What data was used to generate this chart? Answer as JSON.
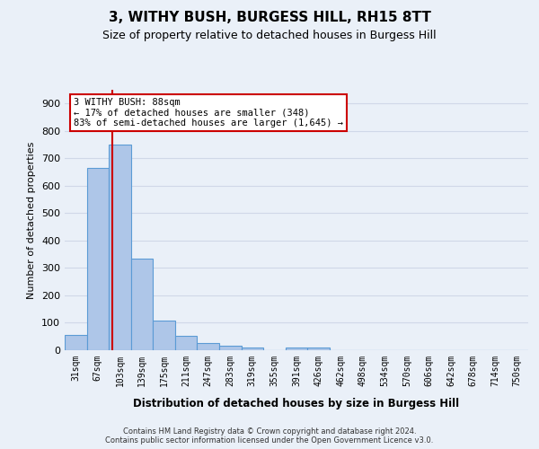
{
  "title": "3, WITHY BUSH, BURGESS HILL, RH15 8TT",
  "subtitle": "Size of property relative to detached houses in Burgess Hill",
  "xlabel": "Distribution of detached houses by size in Burgess Hill",
  "ylabel": "Number of detached properties",
  "footer_line1": "Contains HM Land Registry data © Crown copyright and database right 2024.",
  "footer_line2": "Contains public sector information licensed under the Open Government Licence v3.0.",
  "bin_labels": [
    "31sqm",
    "67sqm",
    "103sqm",
    "139sqm",
    "175sqm",
    "211sqm",
    "247sqm",
    "283sqm",
    "319sqm",
    "355sqm",
    "391sqm",
    "426sqm",
    "462sqm",
    "498sqm",
    "534sqm",
    "570sqm",
    "606sqm",
    "642sqm",
    "678sqm",
    "714sqm",
    "750sqm"
  ],
  "bar_values": [
    55,
    665,
    750,
    335,
    108,
    52,
    25,
    15,
    10,
    0,
    10,
    10,
    0,
    0,
    0,
    0,
    0,
    0,
    0,
    0,
    0
  ],
  "bar_color": "#aec6e8",
  "bar_edge_color": "#5b9bd5",
  "grid_color": "#d0d8e8",
  "background_color": "#eaf0f8",
  "red_line_x": 1.64,
  "annotation_text": "3 WITHY BUSH: 88sqm\n← 17% of detached houses are smaller (348)\n83% of semi-detached houses are larger (1,645) →",
  "annotation_box_color": "#ffffff",
  "annotation_box_edge": "#cc0000",
  "ylim": [
    0,
    950
  ],
  "yticks": [
    0,
    100,
    200,
    300,
    400,
    500,
    600,
    700,
    800,
    900
  ]
}
